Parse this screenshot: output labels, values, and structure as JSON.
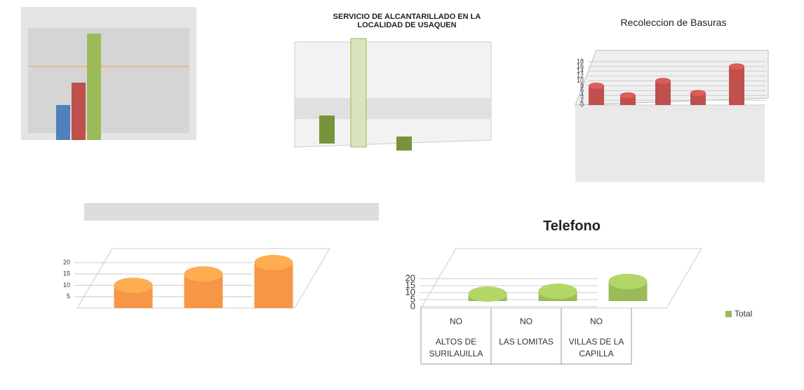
{
  "chart_data": [
    {
      "type": "bar",
      "title": "SERVICIO DE ALCANTARILLADO EN LA LOCALIDAD DE USAQUEN"
    },
    {
      "type": "bar",
      "title": "Recoleccion de Basuras",
      "values": [
        8,
        4,
        10,
        5,
        16
      ],
      "color": "#c0504d",
      "ylim": [
        0,
        18
      ],
      "yticks": [
        0,
        2,
        4,
        6,
        8,
        10,
        12,
        14,
        16,
        18
      ]
    },
    {
      "type": "bar",
      "values": [
        10,
        15,
        20
      ],
      "color": "#f79646",
      "ylim": [
        0,
        20
      ],
      "yticks": [
        5,
        10,
        15,
        20
      ]
    },
    {
      "type": "bar",
      "title": "Telefono",
      "categories": [
        "ALTOS DE SURILAUILLA",
        "LAS LOMITAS",
        "VILLAS DE LA CAPILLA"
      ],
      "groups": [
        "NO",
        "NO",
        "NO"
      ],
      "series": [
        {
          "name": "Total",
          "color": "#9bbb59",
          "values": [
            9,
            11,
            18
          ]
        }
      ],
      "ylim": [
        0,
        20
      ],
      "yticks": [
        0,
        5,
        10,
        15,
        20
      ]
    }
  ]
}
